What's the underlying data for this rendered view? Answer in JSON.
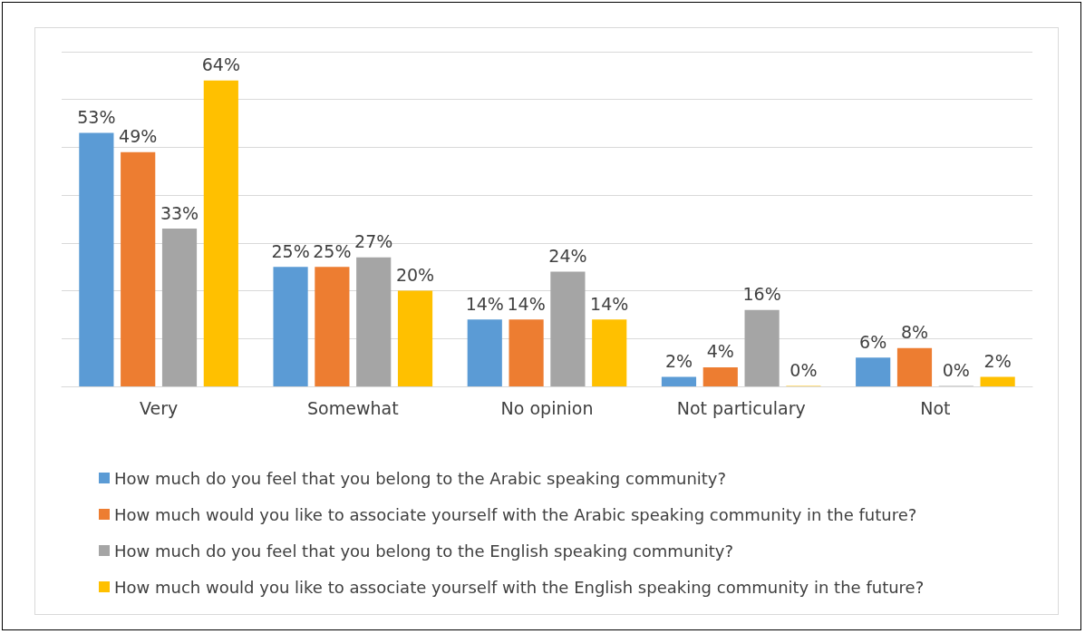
{
  "chart_data": {
    "type": "bar",
    "categories": [
      "Very",
      "Somewhat",
      "No opinion",
      "Not particulary",
      "Not"
    ],
    "series": [
      {
        "name": "How much do you feel that you belong to the Arabic speaking community?",
        "color": "#5b9bd5",
        "values": [
          53,
          25,
          14,
          2,
          6
        ],
        "value_labels": [
          "53%",
          "25%",
          "14%",
          "2%",
          "6%"
        ]
      },
      {
        "name": "How much would you like to associate yourself with the Arabic speaking community in the future?",
        "color": "#ed7d31",
        "values": [
          49,
          25,
          14,
          4,
          8
        ],
        "value_labels": [
          "49%",
          "25%",
          "14%",
          "4%",
          "8%"
        ]
      },
      {
        "name": "How much do you feel that you belong to the English speaking community?",
        "color": "#a5a5a5",
        "values": [
          33,
          27,
          24,
          16,
          0
        ],
        "value_labels": [
          "33%",
          "27%",
          "24%",
          "16%",
          "0%"
        ]
      },
      {
        "name": "How much would you like to associate yourself with the English speaking community in the future?",
        "color": "#ffc000",
        "values": [
          64,
          20,
          14,
          0,
          2
        ],
        "value_labels": [
          "64%",
          "20%",
          "14%",
          "0%",
          "2%"
        ]
      }
    ],
    "ylim": [
      0,
      70
    ],
    "yticks": [
      {
        "value": 0,
        "label": null
      },
      {
        "value": 10,
        "label": null
      },
      {
        "value": 20,
        "label": null
      },
      {
        "value": 30,
        "label": null
      },
      {
        "value": 40,
        "label": null
      },
      {
        "value": 50,
        "label": null
      },
      {
        "value": 60,
        "label": null
      },
      {
        "value": 70,
        "label": null
      }
    ],
    "tick_labels": "x",
    "grid": "y",
    "legend": "bottom"
  }
}
